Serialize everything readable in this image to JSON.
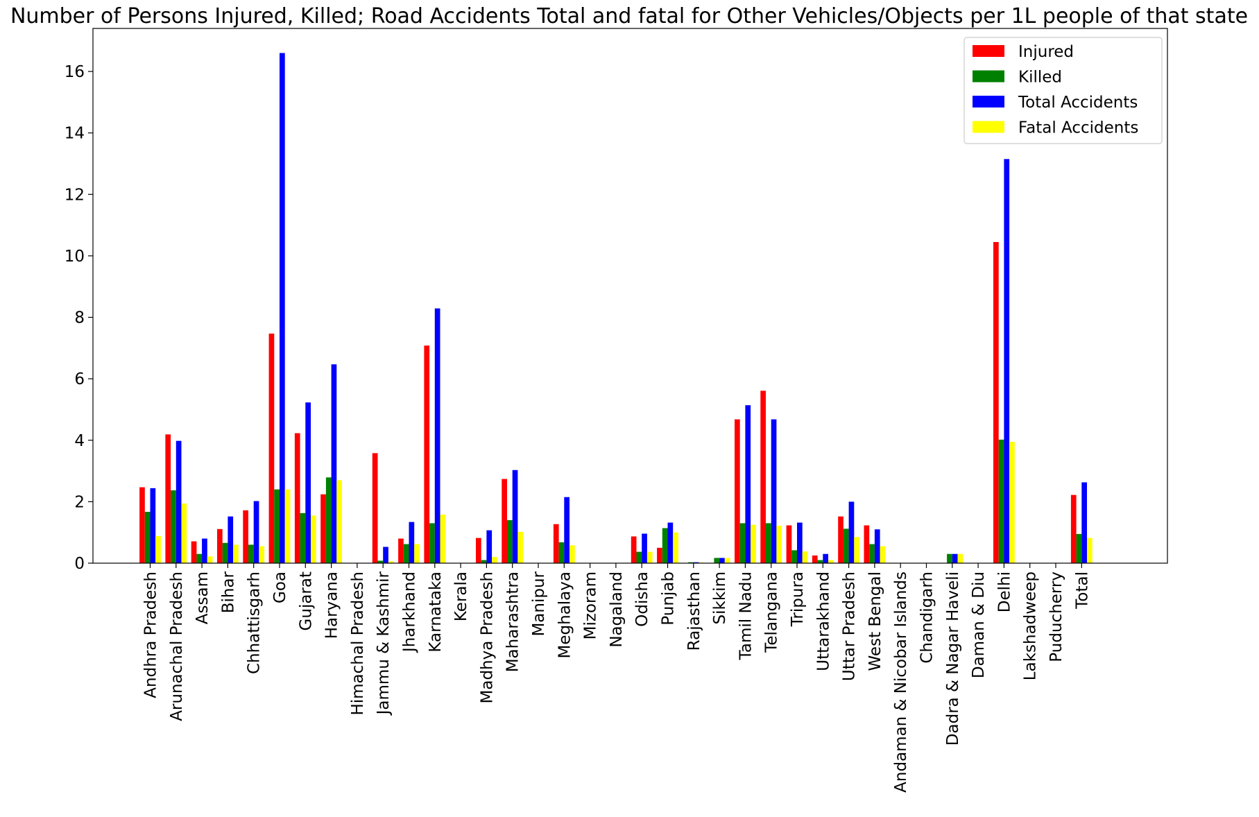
{
  "chart_data": {
    "type": "bar",
    "title": "Number of Persons Injured, Killed; Road Accidents Total and fatal for Other Vehicles/Objects per 1L people of that state",
    "xlabel": "",
    "ylabel": "",
    "ylim": [
      0,
      17.4
    ],
    "yticks": [
      0,
      2,
      4,
      6,
      8,
      10,
      12,
      14,
      16
    ],
    "grid": false,
    "legend_position": "top-right",
    "categories": [
      "Andhra Pradesh",
      "Arunachal Pradesh",
      "Assam",
      "Bihar",
      "Chhattisgarh",
      "Goa",
      "Gujarat",
      "Haryana",
      "Himachal Pradesh",
      "Jammu & Kashmir",
      "Jharkhand",
      "Karnataka",
      "Kerala",
      "Madhya Pradesh",
      "Maharashtra",
      "Manipur",
      "Meghalaya",
      "Mizoram",
      "Nagaland",
      "Odisha",
      "Punjab",
      "Rajasthan",
      "Sikkim",
      "Tamil Nadu",
      "Telangana",
      "Tripura",
      "Uttarakhand",
      "Uttar Pradesh",
      "West Bengal",
      "Andaman & Nicobar Islands",
      "Chandigarh",
      "Dadra & Nagar Haveli",
      "Daman & Diu",
      "Delhi",
      "Lakshadweep",
      "Puducherry",
      "Total"
    ],
    "series": [
      {
        "name": "Injured",
        "color": "#ff0000",
        "values": [
          2.47,
          4.19,
          0.71,
          1.11,
          1.72,
          7.47,
          4.23,
          2.24,
          0.0,
          3.58,
          0.8,
          7.08,
          0.0,
          0.82,
          2.74,
          0.0,
          1.27,
          0.0,
          0.0,
          0.87,
          0.5,
          0.0,
          0.0,
          4.68,
          5.61,
          1.23,
          0.25,
          1.52,
          1.23,
          0.0,
          0.0,
          0.0,
          0.0,
          10.45,
          0.0,
          0.0,
          2.22
        ]
      },
      {
        "name": "Killed",
        "color": "#008000",
        "values": [
          1.67,
          2.37,
          0.3,
          0.66,
          0.6,
          2.4,
          1.63,
          2.79,
          0.0,
          0.08,
          0.62,
          1.3,
          0.0,
          0.1,
          1.4,
          0.0,
          0.68,
          0.0,
          0.0,
          0.37,
          1.14,
          0.03,
          0.17,
          1.3,
          1.3,
          0.42,
          0.1,
          1.12,
          0.62,
          0.0,
          0.0,
          0.3,
          0.0,
          4.02,
          0.0,
          0.0,
          0.95
        ]
      },
      {
        "name": "Total Accidents",
        "color": "#0000ff",
        "values": [
          2.44,
          3.98,
          0.8,
          1.52,
          2.02,
          16.6,
          5.23,
          6.47,
          0.0,
          0.53,
          1.34,
          8.29,
          0.0,
          1.07,
          3.03,
          0.0,
          2.15,
          0.0,
          0.0,
          0.96,
          1.32,
          0.03,
          0.17,
          5.14,
          4.68,
          1.32,
          0.3,
          2.0,
          1.1,
          0.0,
          0.0,
          0.3,
          0.0,
          13.15,
          0.0,
          0.0,
          2.63
        ]
      },
      {
        "name": "Fatal Accidents",
        "color": "#ffff00",
        "values": [
          0.88,
          1.94,
          0.22,
          0.6,
          0.55,
          2.4,
          1.55,
          2.7,
          0.0,
          0.06,
          0.62,
          1.58,
          0.0,
          0.2,
          1.02,
          0.0,
          0.58,
          0.0,
          0.0,
          0.37,
          1.0,
          0.02,
          0.17,
          1.25,
          1.22,
          0.38,
          0.1,
          0.85,
          0.55,
          0.0,
          0.0,
          0.3,
          0.0,
          3.95,
          0.0,
          0.0,
          0.82
        ]
      }
    ]
  }
}
